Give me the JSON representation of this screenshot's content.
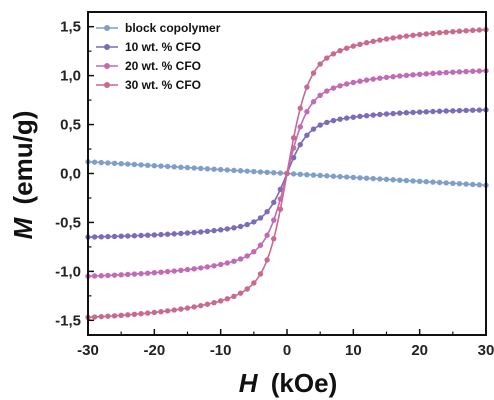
{
  "chart_data": {
    "type": "line",
    "title": "",
    "xlabel_var": "H",
    "xlabel_unit": "(kOe)",
    "ylabel_var": "M",
    "ylabel_unit": "(emu/g)",
    "xlim": [
      -30,
      30
    ],
    "ylim": [
      -1.65,
      1.65
    ],
    "xticks": [
      -30,
      -20,
      -10,
      0,
      10,
      20,
      30
    ],
    "yticks": [
      -1.5,
      -1.0,
      -0.5,
      0.0,
      0.5,
      1.0,
      1.5
    ],
    "xtick_labels": [
      "-30",
      "-20",
      "-10",
      "0",
      "10",
      "20",
      "30"
    ],
    "ytick_labels": [
      "-1,5",
      "-1,0",
      "-0,5",
      "0,0",
      "0,5",
      "1,0",
      "1,5"
    ],
    "grid": false,
    "legend_position": "top-left",
    "series": [
      {
        "name": "block copolymer",
        "color": "#7f9fc8",
        "model": "linear",
        "endpoint": -0.12,
        "x": [
          -30,
          -20,
          -10,
          0,
          10,
          20,
          30
        ],
        "y": [
          0.12,
          0.08,
          0.04,
          0.0,
          -0.04,
          -0.08,
          -0.12
        ]
      },
      {
        "name": "10 wt. % CFO",
        "color": "#7b6bb8",
        "model": "tanh",
        "Ms": 0.65,
        "k": 3.0,
        "x": [
          -30,
          -20,
          -10,
          -5,
          -2,
          0,
          2,
          5,
          10,
          20,
          30
        ],
        "y": [
          -0.64,
          -0.56,
          -0.43,
          -0.32,
          -0.16,
          0.0,
          0.16,
          0.32,
          0.43,
          0.56,
          0.64
        ]
      },
      {
        "name": "20 wt. % CFO",
        "color": "#c26ab5",
        "model": "tanh",
        "Ms": 1.05,
        "k": 3.0,
        "x": [
          -30,
          -20,
          -10,
          -5,
          -2,
          0,
          2,
          5,
          10,
          20,
          30
        ],
        "y": [
          -1.04,
          -0.91,
          -0.7,
          -0.52,
          -0.26,
          0.0,
          0.26,
          0.52,
          0.7,
          0.91,
          1.04
        ]
      },
      {
        "name": "30 wt. % CFO",
        "color": "#c9698e",
        "model": "tanh",
        "Ms": 1.47,
        "k": 3.0,
        "x": [
          -30,
          -20,
          -10,
          -5,
          -2,
          0,
          2,
          5,
          10,
          20,
          30
        ],
        "y": [
          -1.46,
          -1.28,
          -0.98,
          -0.72,
          -0.36,
          0.0,
          0.36,
          0.72,
          0.98,
          1.28,
          1.46
        ]
      }
    ]
  }
}
